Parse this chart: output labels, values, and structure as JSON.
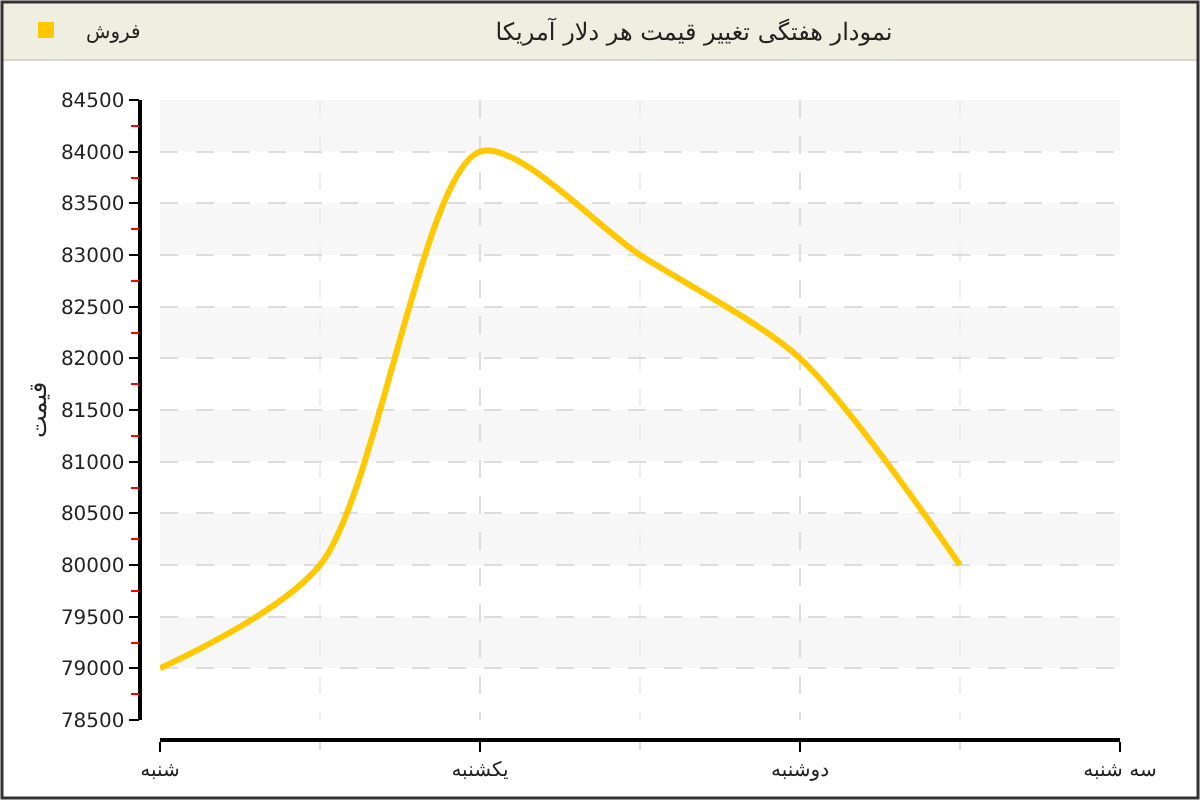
{
  "chart_data": {
    "type": "line",
    "title": "نمودار هفتگی تغییر قیمت هر دلار آمریکا",
    "ylabel": "قیمت",
    "categories": [
      "شنبه",
      null,
      "یکشنبه",
      null,
      "دوشنبه",
      null,
      "سه شنبه"
    ],
    "series": [
      {
        "name": "فروش",
        "color": "#ffc800",
        "values": [
          79000,
          80000,
          84000,
          83000,
          82000,
          80000,
          null
        ]
      }
    ],
    "ylim": [
      78500,
      84500
    ],
    "yticks": [
      78500,
      {
        "value": 78750,
        "label": null
      },
      79000,
      {
        "value": 79250,
        "label": null
      },
      79500,
      {
        "value": 79750,
        "label": null
      },
      80000,
      {
        "value": 80250,
        "label": null
      },
      80500,
      {
        "value": 80750,
        "label": null
      },
      81000,
      {
        "value": 81250,
        "label": null
      },
      81500,
      {
        "value": 81750,
        "label": null
      },
      82000,
      {
        "value": 82250,
        "label": null
      },
      82500,
      {
        "value": 82750,
        "label": null
      },
      83000,
      {
        "value": 83250,
        "label": null
      },
      83500,
      {
        "value": 83750,
        "label": null
      },
      84000,
      {
        "value": 84250,
        "label": null
      },
      84500
    ],
    "grid": true,
    "legend": "top left",
    "line_style": "solid"
  }
}
